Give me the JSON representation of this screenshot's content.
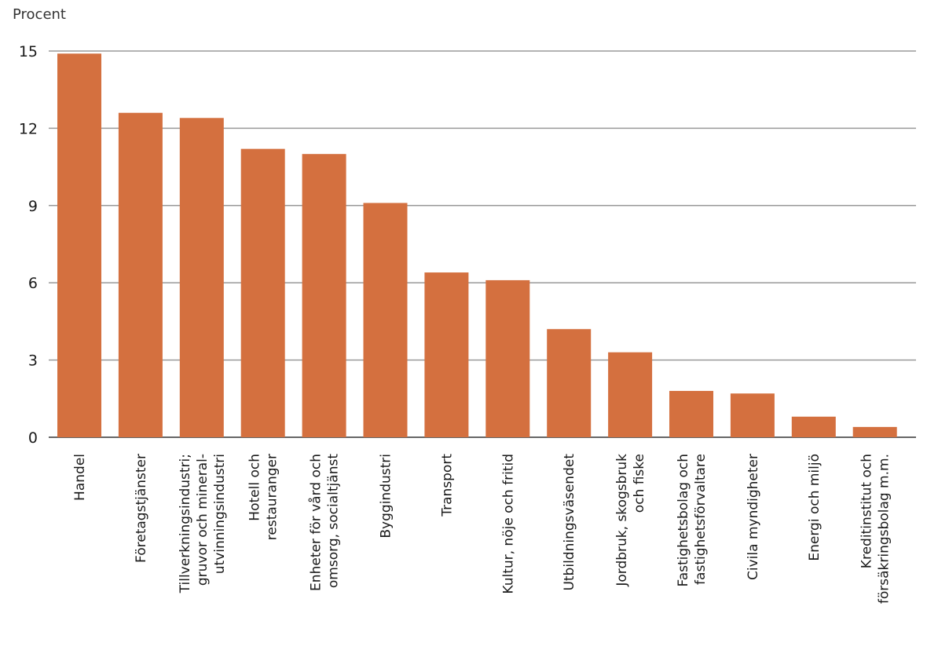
{
  "chart_data": {
    "type": "bar",
    "ylabel": "Procent",
    "ylim": [
      0,
      15
    ],
    "yticks": [
      0,
      3,
      6,
      9,
      12,
      15
    ],
    "grid": true,
    "bar_color": "#d4703f",
    "categories": [
      [
        "Handel"
      ],
      [
        "Företagstjänster"
      ],
      [
        "Tillverkningsindustri;",
        "gruvor  och mineral-",
        "utvinningsindustri"
      ],
      [
        "Hotell och",
        "restauranger"
      ],
      [
        "Enheter för vård och",
        "omsorg, socialtjänst"
      ],
      [
        "Byggindustri"
      ],
      [
        "Transport"
      ],
      [
        "Kultur, nöje och fritid"
      ],
      [
        "Utbildningsväsendet"
      ],
      [
        "Jordbruk, skogsbruk",
        "och fiske"
      ],
      [
        "Fastighetsbolag och",
        "fastighetsförvaltare"
      ],
      [
        "Civila myndigheter"
      ],
      [
        "Energi och miljö"
      ],
      [
        "Kreditinstitut och",
        "försäkringsbolag m.m."
      ]
    ],
    "values": [
      14.9,
      12.6,
      12.4,
      11.2,
      11.0,
      9.1,
      6.4,
      6.1,
      4.2,
      3.3,
      1.8,
      1.7,
      0.8,
      0.4
    ]
  }
}
